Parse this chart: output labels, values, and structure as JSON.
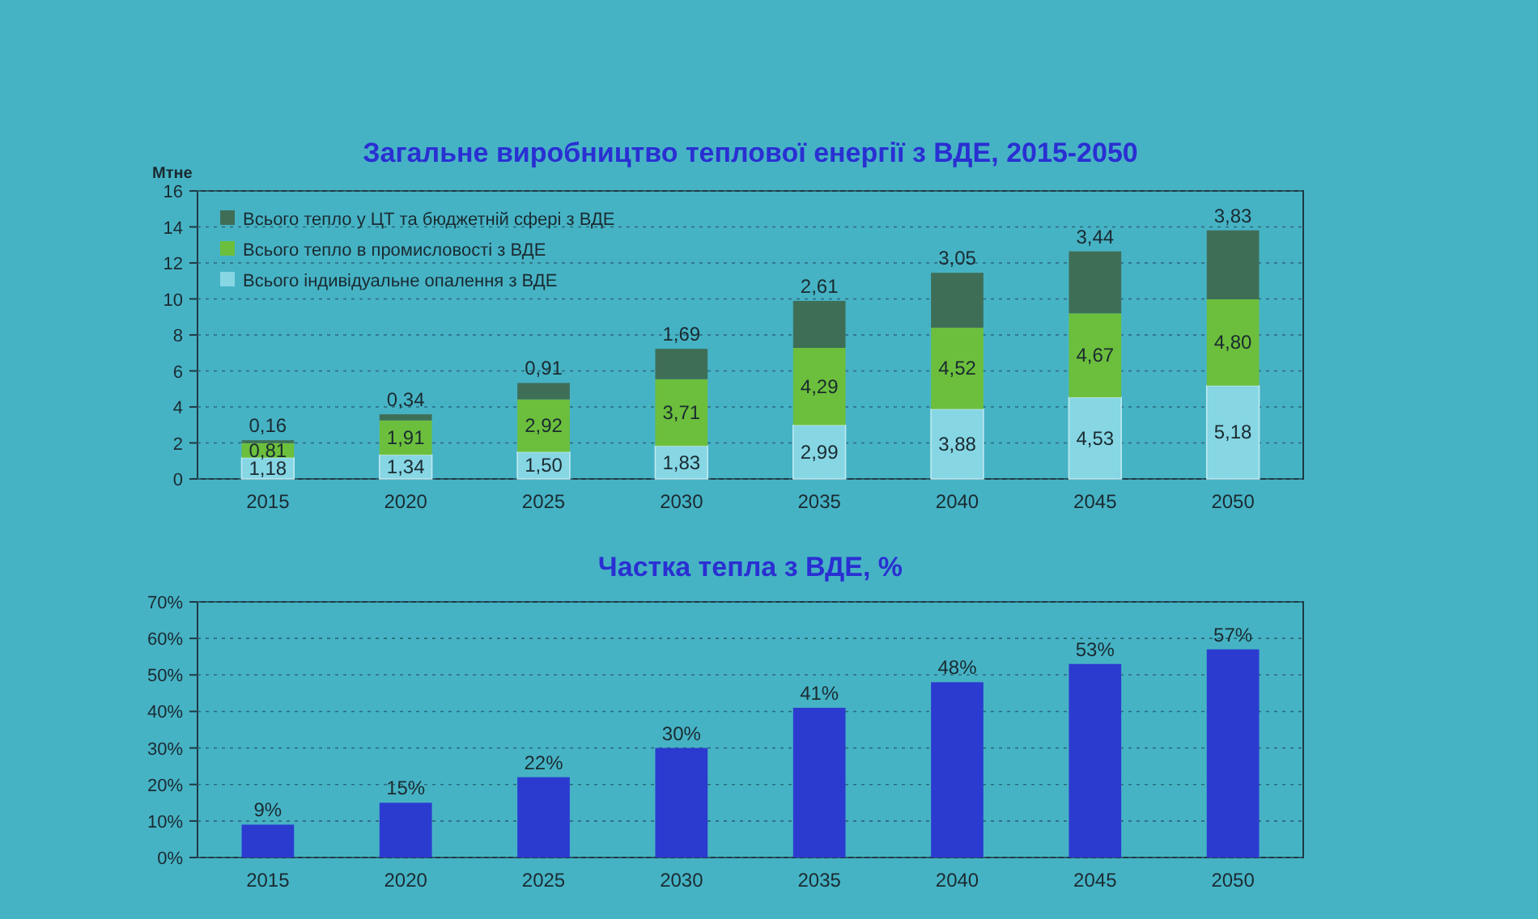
{
  "chart_data": [
    {
      "type": "bar",
      "title": "Загальне виробництво теплової енергії з ВДЕ, 2015-2050",
      "ylabel": "Мтне",
      "categories": [
        "2015",
        "2020",
        "2025",
        "2030",
        "2035",
        "2040",
        "2045",
        "2050"
      ],
      "stacked": true,
      "series": [
        {
          "name": "Всього індивідуальне опалення з ВДЕ",
          "color": "#86d6e4",
          "values": [
            1.18,
            1.34,
            1.5,
            1.83,
            2.99,
            3.88,
            4.53,
            5.18
          ],
          "value_labels": [
            "1,18",
            "1,34",
            "1,50",
            "1,83",
            "2,99",
            "3,88",
            "4,53",
            "5,18"
          ]
        },
        {
          "name": "Всього тепло в промисловості з ВДЕ",
          "color": "#6cbf3c",
          "values": [
            0.81,
            1.91,
            2.92,
            3.71,
            4.29,
            4.52,
            4.67,
            4.8
          ],
          "value_labels": [
            "0,81",
            "1,91",
            "2,92",
            "3,71",
            "4,29",
            "4,52",
            "4,67",
            "4,80"
          ]
        },
        {
          "name": "Всього тепло у ЦТ та бюджетній сфері з ВДЕ",
          "color": "#3f6e57",
          "values": [
            0.16,
            0.34,
            0.91,
            1.69,
            2.61,
            3.05,
            3.44,
            3.83
          ],
          "value_labels": [
            "0,16",
            "0,34",
            "0,91",
            "1,69",
            "2,61",
            "3,05",
            "3,44",
            "3,83"
          ]
        }
      ],
      "ylim": [
        0,
        16
      ],
      "yticks": [
        0,
        2,
        4,
        6,
        8,
        10,
        12,
        14,
        16
      ],
      "grid": "y",
      "legend": "top left"
    },
    {
      "type": "bar",
      "title": "Частка тепла з ВДЕ, %",
      "categories": [
        "2015",
        "2020",
        "2025",
        "2030",
        "2035",
        "2040",
        "2045",
        "2050"
      ],
      "values": [
        9,
        15,
        22,
        30,
        41,
        48,
        53,
        57
      ],
      "value_labels": [
        "9%",
        "15%",
        "22%",
        "30%",
        "41%",
        "48%",
        "53%",
        "57%"
      ],
      "color": "#2b3bd0",
      "ylim": [
        0,
        70
      ],
      "yticks": [
        {
          "value": 0,
          "label": "0%"
        },
        {
          "value": 10,
          "label": "10%"
        },
        {
          "value": 20,
          "label": "20%"
        },
        {
          "value": 30,
          "label": "30%"
        },
        {
          "value": 40,
          "label": "40%"
        },
        {
          "value": 50,
          "label": "50%"
        },
        {
          "value": 60,
          "label": "60%"
        },
        {
          "value": 70,
          "label": "70%"
        }
      ],
      "grid": "y"
    }
  ]
}
